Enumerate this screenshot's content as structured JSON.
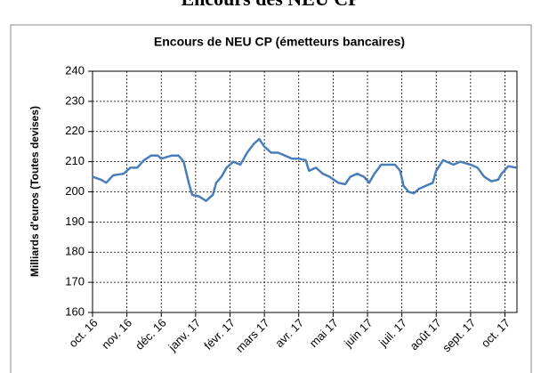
{
  "heading": "Encours des NEU CP",
  "chart_data": {
    "type": "line",
    "title": "Encours de NEU CP (émetteurs bancaires)",
    "y_label": "Milliards d'euros (Toutes devises)",
    "xlim": [
      0,
      12.35
    ],
    "xticks": [
      {
        "value": 0,
        "label": "oct. 16"
      },
      {
        "value": 1,
        "label": "nov. 16"
      },
      {
        "value": 2,
        "label": "déc. 16"
      },
      {
        "value": 3,
        "label": "janv. 17"
      },
      {
        "value": 4,
        "label": "févr. 17"
      },
      {
        "value": 5,
        "label": "mars 17"
      },
      {
        "value": 6,
        "label": "avr. 17"
      },
      {
        "value": 7,
        "label": "mai 17"
      },
      {
        "value": 8,
        "label": "juin 17"
      },
      {
        "value": 9,
        "label": "juil. 17"
      },
      {
        "value": 10,
        "label": "août 17"
      },
      {
        "value": 11,
        "label": "sept. 17"
      },
      {
        "value": 12,
        "label": "oct. 17"
      }
    ],
    "ylim": [
      160,
      240
    ],
    "yticks": [
      160,
      170,
      180,
      190,
      200,
      210,
      220,
      230,
      240
    ],
    "grid": true,
    "series": [
      {
        "color": "#4a7ebb",
        "x": [
          0,
          0.25,
          0.4,
          0.6,
          0.9,
          1.1,
          1.3,
          1.5,
          1.7,
          1.9,
          2.0,
          2.3,
          2.5,
          2.65,
          2.8,
          2.9,
          3.1,
          3.3,
          3.5,
          3.6,
          3.75,
          3.9,
          4.1,
          4.3,
          4.5,
          4.7,
          4.85,
          5.0,
          5.2,
          5.4,
          5.6,
          5.8,
          6.0,
          6.2,
          6.3,
          6.5,
          6.7,
          6.9,
          7.15,
          7.35,
          7.5,
          7.7,
          7.9,
          8.05,
          8.2,
          8.4,
          8.6,
          8.8,
          8.95,
          9.05,
          9.2,
          9.35,
          9.5,
          9.7,
          9.9,
          10.0,
          10.2,
          10.5,
          10.7,
          11.0,
          11.2,
          11.4,
          11.6,
          11.8,
          11.9,
          12.1,
          12.33
        ],
        "values": [
          205,
          204,
          203,
          205.5,
          206,
          208,
          208,
          210.5,
          212,
          212,
          211,
          212,
          212,
          210,
          203,
          199,
          198.5,
          197,
          199,
          203,
          205,
          208,
          210,
          209,
          213,
          216,
          217.5,
          215,
          213,
          213,
          212,
          211,
          211,
          210.5,
          207,
          208,
          206,
          205,
          203,
          202.5,
          205,
          206,
          205,
          203,
          206,
          209,
          209,
          209,
          207,
          202,
          200,
          199.5,
          201,
          202,
          203,
          207,
          210.5,
          209,
          210,
          209,
          208,
          205,
          203.5,
          204,
          206,
          208.5,
          208
        ]
      }
    ]
  }
}
